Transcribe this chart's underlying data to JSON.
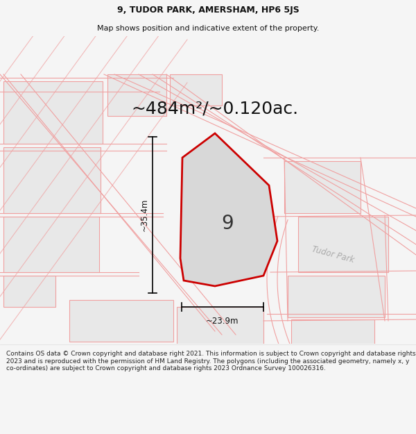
{
  "title_line1": "9, TUDOR PARK, AMERSHAM, HP6 5JS",
  "title_line2": "Map shows position and indicative extent of the property.",
  "area_text": "~484m²/~0.120ac.",
  "width_label": "~23.9m",
  "height_label": "~35.4m",
  "number_label": "9",
  "road_label": "Tudor Park",
  "footer_text": "Contains OS data © Crown copyright and database right 2021. This information is subject to Crown copyright and database rights 2023 and is reproduced with the permission of HM Land Registry. The polygons (including the associated geometry, namely x, y co-ordinates) are subject to Crown copyright and database rights 2023 Ordnance Survey 100026316.",
  "bg_color": "#f5f5f5",
  "map_bg_color": "#ffffff",
  "plot_fill_color": "#d8d8d8",
  "boundary_color": "#cc0000",
  "other_lines_color": "#f0a0a0",
  "other_fill_color": "#e8e8e8",
  "header_bg": "#ffffff",
  "footer_bg": "#ffffff",
  "title_fontsize": 9,
  "subtitle_fontsize": 8,
  "area_fontsize": 18,
  "dim_fontsize": 8.5,
  "number_fontsize": 20,
  "road_fontsize": 8.5,
  "footer_fontsize": 6.5
}
